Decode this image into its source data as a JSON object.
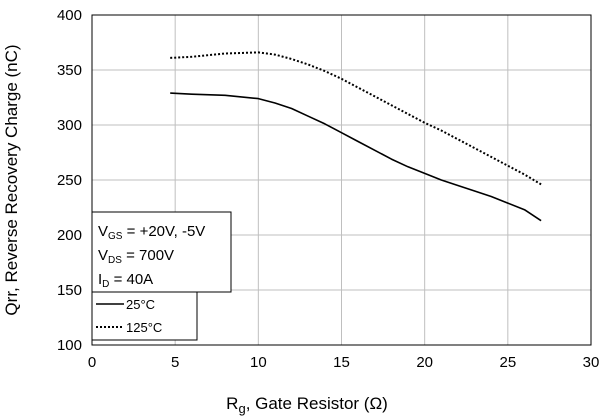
{
  "chart_data": {
    "type": "line",
    "xlabel": {
      "main": "R",
      "sub": "g",
      "rest": ", Gate Resistor (Ω)"
    },
    "ylabel": "Qrr, Reverse Recovery Charge (nC)",
    "xlim": [
      0,
      30
    ],
    "ylim": [
      100,
      400
    ],
    "xticks": [
      0,
      5,
      10,
      15,
      20,
      25,
      30
    ],
    "yticks": [
      100,
      150,
      200,
      250,
      300,
      350,
      400
    ],
    "grid": true,
    "series": [
      {
        "name": "25°C",
        "color": "#000000",
        "dash": "solid",
        "x": [
          4.7,
          6,
          8,
          10,
          11,
          12,
          13,
          14,
          15,
          16,
          17,
          18,
          19,
          20,
          21,
          22,
          23,
          24,
          25,
          26,
          27
        ],
        "y": [
          329,
          328,
          327,
          324,
          320,
          315,
          308,
          301,
          293,
          285,
          277,
          269,
          262,
          256,
          250,
          245,
          240,
          235,
          229,
          223,
          213
        ]
      },
      {
        "name": "125°C",
        "color": "#000000",
        "dash": "dotted",
        "x": [
          4.7,
          6,
          8,
          10,
          11,
          12,
          13,
          14,
          15,
          16,
          17,
          18,
          19,
          20,
          21,
          22,
          23,
          24,
          25,
          26,
          27
        ],
        "y": [
          361,
          362,
          365,
          366,
          364,
          360,
          355,
          349,
          342,
          334,
          326,
          318,
          310,
          302,
          295,
          287,
          279,
          271,
          263,
          255,
          246
        ]
      }
    ],
    "conditions": [
      {
        "main": "V",
        "sub": "GS",
        "rest": " = +20V, -5V"
      },
      {
        "main": "V",
        "sub": "DS",
        "rest": " = 700V"
      },
      {
        "main": "I",
        "sub": "D",
        "rest": " = 40A"
      }
    ],
    "legend": {
      "position": "bottom-left"
    }
  }
}
